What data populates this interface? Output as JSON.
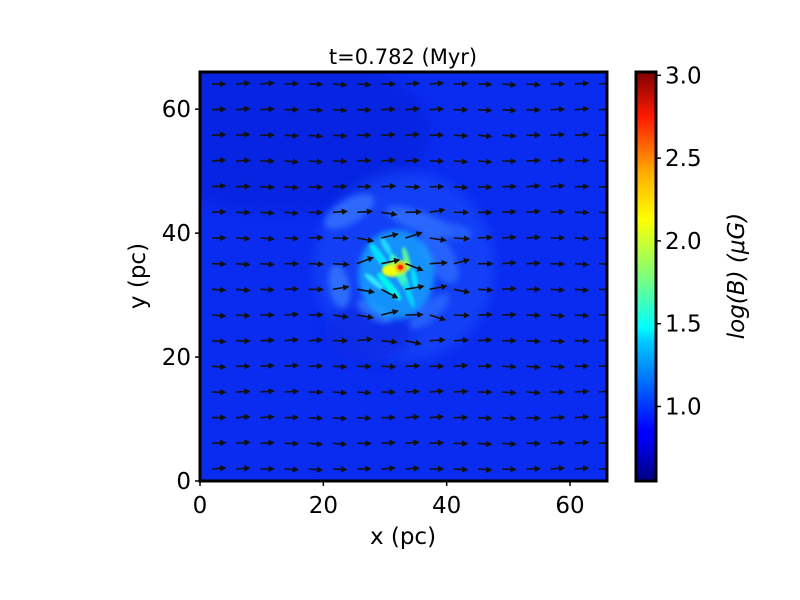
{
  "chart_data": {
    "type": "heatmap",
    "title": "t=0.782 (Myr)",
    "xlabel": "x (pc)",
    "ylabel": "y (pc)",
    "xlim": [
      0,
      66
    ],
    "ylim": [
      0,
      66
    ],
    "x_ticks": [
      "0",
      "20",
      "40",
      "60"
    ],
    "y_ticks": [
      "0",
      "20",
      "40",
      "60"
    ],
    "x_tick_values": [
      0,
      20,
      40,
      60
    ],
    "y_tick_values": [
      0,
      20,
      40,
      60
    ],
    "colorbar": {
      "label": "log(B) (μG)",
      "range": [
        0.55,
        3.02
      ],
      "ticks": [
        "1.0",
        "1.5",
        "2.0",
        "2.5",
        "3.0"
      ],
      "tick_values": [
        1.0,
        1.5,
        2.0,
        2.5,
        3.0
      ],
      "colormap": "jet"
    },
    "background_value": 0.75,
    "field_structure": {
      "center": [
        31.5,
        33.0
      ],
      "peak_value": 3.0,
      "peak_location": [
        32.5,
        34.5
      ]
    },
    "vector_field": {
      "type": "quiver",
      "color": "#111111",
      "grid_x_count": 17,
      "grid_y_count": 16,
      "dominant_direction": "+x"
    }
  }
}
